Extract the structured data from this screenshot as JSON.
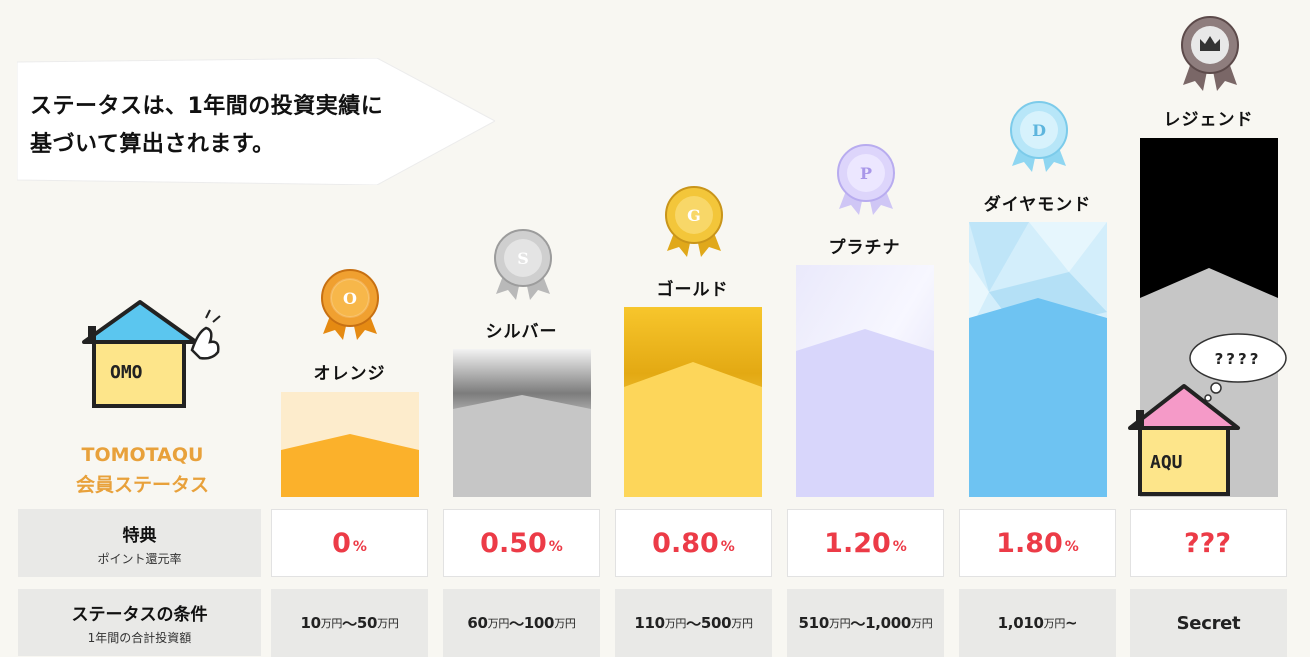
{
  "callout": {
    "text": "ステータスは、1年間の投資実績に\n基づいて算出されます。"
  },
  "brand": {
    "line1": "TOMOTAQU",
    "line2": "会員ステータス",
    "mascot_left": "OMO",
    "mascot_right": "AQU"
  },
  "thought_bubble": "????",
  "tiers": [
    {
      "name": "オレンジ",
      "badge_letter": "O"
    },
    {
      "name": "シルバー",
      "badge_letter": "S"
    },
    {
      "name": "ゴールド",
      "badge_letter": "G"
    },
    {
      "name": "プラチナ",
      "badge_letter": "P"
    },
    {
      "name": "ダイヤモンド",
      "badge_letter": "D"
    },
    {
      "name": "レジェンド",
      "badge_letter": ""
    }
  ],
  "benefit_row": {
    "title": "特典",
    "subtitle": "ポイント還元率",
    "values": [
      {
        "num": "0",
        "unit": "%"
      },
      {
        "num": "0.50",
        "unit": "%"
      },
      {
        "num": "0.80",
        "unit": "%"
      },
      {
        "num": "1.20",
        "unit": "%"
      },
      {
        "num": "1.80",
        "unit": "%"
      },
      {
        "num": "???",
        "unit": ""
      }
    ]
  },
  "condition_row": {
    "title": "ステータスの条件",
    "subtitle": "1年間の合計投資額",
    "values": [
      {
        "a": "10",
        "au": "万円",
        "sep": "〜",
        "b": "50",
        "bu": "万円"
      },
      {
        "a": "60",
        "au": "万円",
        "sep": "〜",
        "b": "100",
        "bu": "万円"
      },
      {
        "a": "110",
        "au": "万円",
        "sep": "〜",
        "b": "500",
        "bu": "万円"
      },
      {
        "a": "510",
        "au": "万円",
        "sep": "〜",
        "b": "1,000",
        "bu": "万円"
      },
      {
        "a": "1,010",
        "au": "万円",
        "sep": "~",
        "b": "",
        "bu": ""
      },
      {
        "a": "Secret",
        "au": "",
        "sep": "",
        "b": "",
        "bu": ""
      }
    ]
  },
  "colors": {
    "background": "#f8f7f2",
    "rate_red": "#ec3b47",
    "brand_orange": "#e8a13b",
    "orange": "#fbb12b",
    "silver": "#c6c6c6",
    "gold": "#fdd65a",
    "platinum": "#d8d6fb",
    "diamond": "#6ec3f2",
    "legend_dark": "#000000"
  }
}
